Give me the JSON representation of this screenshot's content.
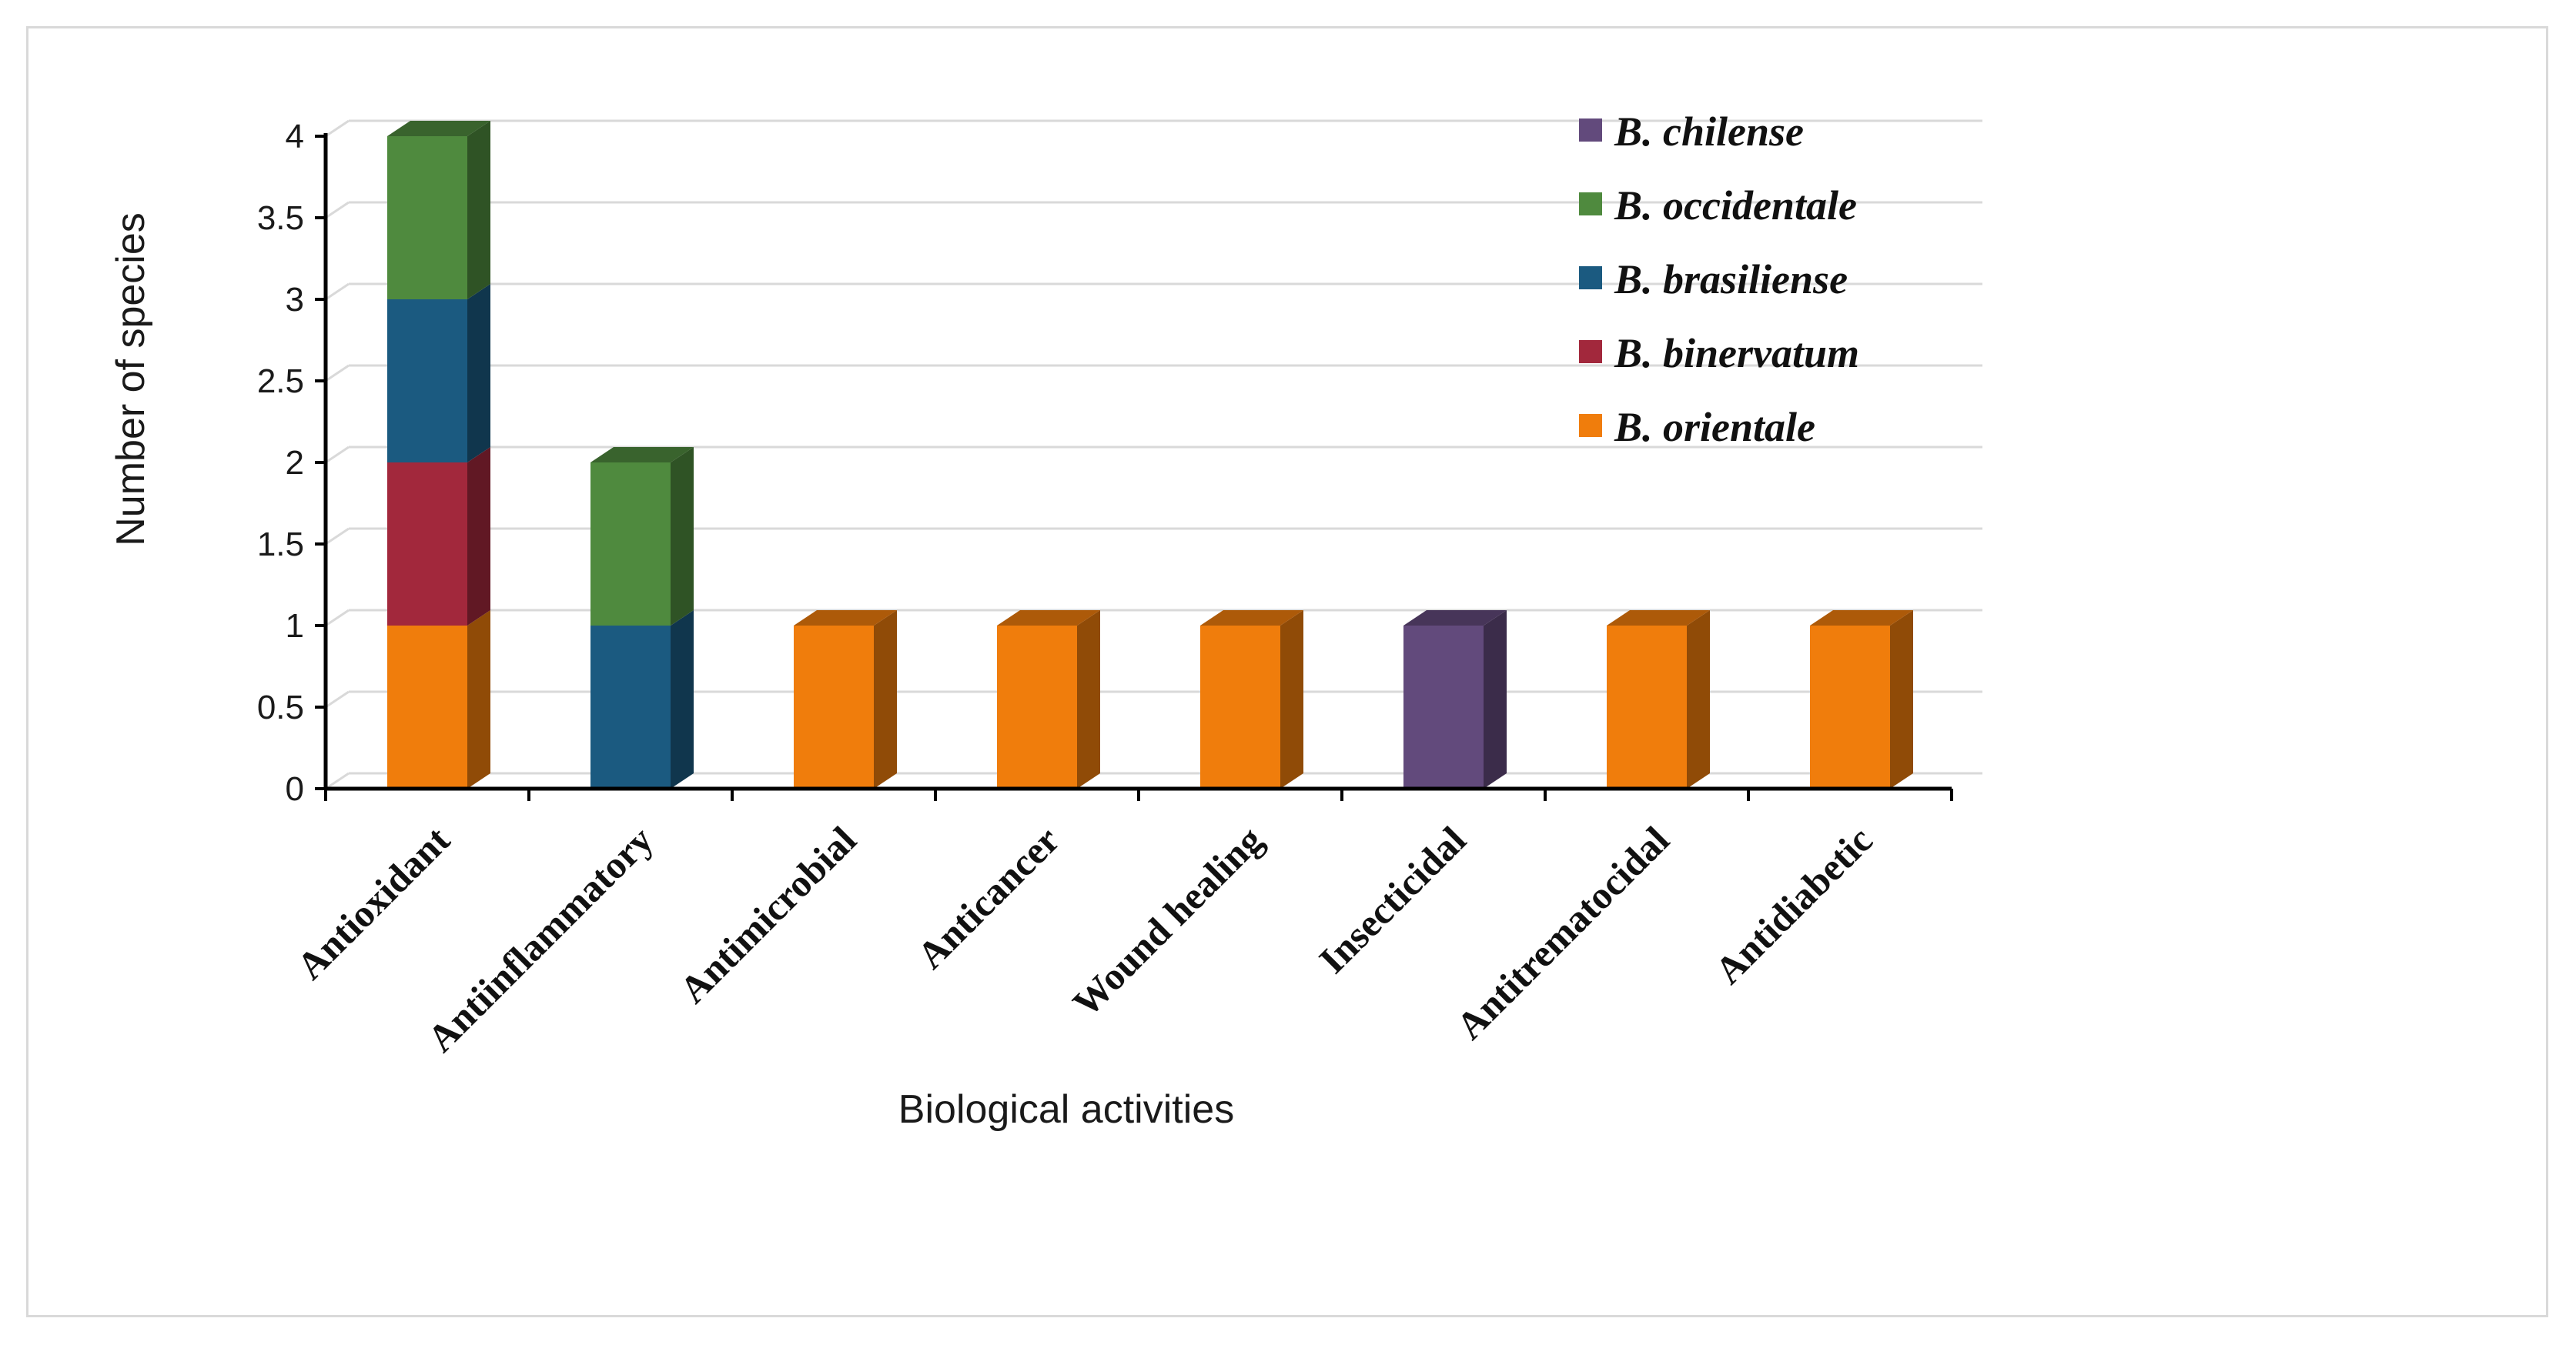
{
  "chart_data": {
    "type": "bar",
    "stacked": true,
    "three_d": true,
    "title": "",
    "xlabel": "Biological activities",
    "ylabel": "Number of species",
    "ylim": [
      0,
      4
    ],
    "yticks": [
      0,
      0.5,
      1,
      1.5,
      2,
      2.5,
      3,
      3.5,
      4
    ],
    "ytick_labels": [
      "0",
      "0.5",
      "1",
      "1.5",
      "2",
      "2.5",
      "3",
      "3.5",
      "4"
    ],
    "grid": true,
    "legend_position": "top-right",
    "categories": [
      "Antioxidant",
      "Antiinflammatory",
      "Antimicrobial",
      "Anticancer",
      "Wound healing",
      "Insecticidal",
      "Antitrematocidal",
      "Antidiabetic"
    ],
    "series": [
      {
        "name": "B. orientale",
        "color": "#f07d0c",
        "values": [
          1,
          0,
          1,
          1,
          1,
          0,
          1,
          1
        ]
      },
      {
        "name": "B. binervatum",
        "color": "#a2283c",
        "values": [
          1,
          0,
          0,
          0,
          0,
          0,
          0,
          0
        ]
      },
      {
        "name": "B. brasiliense",
        "color": "#1b5a80",
        "values": [
          1,
          1,
          0,
          0,
          0,
          0,
          0,
          0
        ]
      },
      {
        "name": "B. occidentale",
        "color": "#4f8a3e",
        "values": [
          1,
          1,
          0,
          0,
          0,
          0,
          0,
          0
        ]
      },
      {
        "name": "B. chilense",
        "color": "#624a7c",
        "values": [
          0,
          0,
          0,
          0,
          0,
          1,
          0,
          0
        ]
      }
    ],
    "legend_order": [
      "B. chilense",
      "B. occidentale",
      "B. brasiliense",
      "B. binervatum",
      "B. orientale"
    ]
  }
}
